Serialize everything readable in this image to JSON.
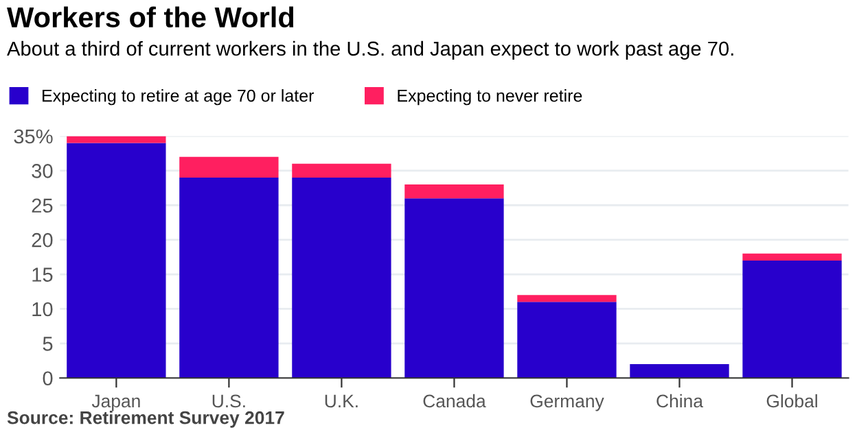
{
  "chart_data": {
    "type": "bar",
    "title": "Workers of the World",
    "subtitle": "About a third of current workers in the U.S. and Japan expect to work past age 70.",
    "categories": [
      "Japan",
      "U.S.",
      "U.K.",
      "Canada",
      "Germany",
      "China",
      "Global"
    ],
    "series": [
      {
        "name": "Expecting to retire at age 70 or later",
        "color": "#2800cc",
        "values": [
          34,
          29,
          29,
          26,
          11,
          2,
          17
        ]
      },
      {
        "name": "Expecting to never retire",
        "color": "#ff1f60",
        "values": [
          1,
          3,
          2,
          2,
          1,
          0,
          1
        ]
      }
    ],
    "stacked": true,
    "ylim": [
      0,
      35
    ],
    "yticks": [
      0,
      5,
      10,
      15,
      20,
      25,
      30,
      {
        "value": 35,
        "label": "35%"
      }
    ],
    "grid": "y",
    "legend": "top left",
    "annotations": [
      "Source: Retirement Survey 2017"
    ]
  }
}
